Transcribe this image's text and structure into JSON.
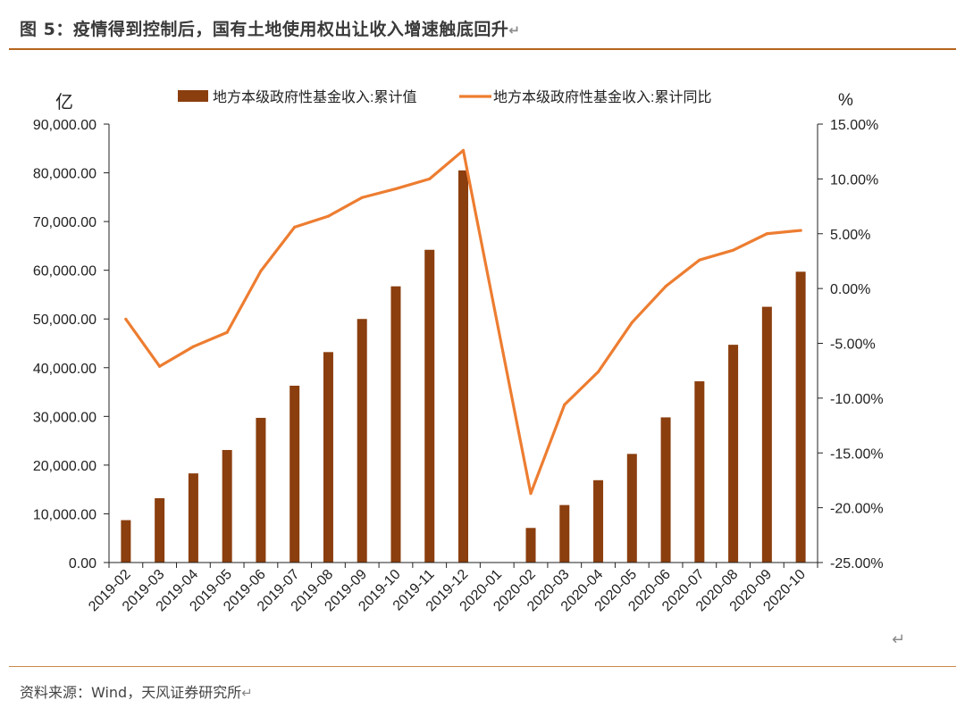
{
  "figure": {
    "title": "图 5：疫情得到控制后，国有土地使用权出让收入增速触底回升",
    "return_glyph": "↵",
    "source": "资料来源：Wind，天风证券研究所"
  },
  "colors": {
    "bar": "#8b3e0e",
    "line": "#ed7d31",
    "axis": "#222222",
    "rule": "#b5651d"
  },
  "chart_data": {
    "type": "bar+line",
    "title": "",
    "categories": [
      "2019-02",
      "2019-03",
      "2019-04",
      "2019-05",
      "2019-06",
      "2019-07",
      "2019-08",
      "2019-09",
      "2019-10",
      "2019-11",
      "2019-12",
      "2020-01",
      "2020-02",
      "2020-03",
      "2020-04",
      "2020-05",
      "2020-06",
      "2020-07",
      "2020-08",
      "2020-09",
      "2020-10"
    ],
    "series": [
      {
        "name": "地方本级政府性基金收入:累计值",
        "type": "bar",
        "axis": "left",
        "values": [
          8700,
          13200,
          18300,
          23100,
          29700,
          36300,
          43200,
          50000,
          56700,
          64200,
          80500,
          null,
          7100,
          11800,
          16900,
          22300,
          29800,
          37200,
          44700,
          52500,
          59700
        ]
      },
      {
        "name": "地方本级政府性基金收入:累计同比",
        "type": "line",
        "axis": "right",
        "values": [
          -2.8,
          -7.1,
          -5.3,
          -4.0,
          1.6,
          5.6,
          6.6,
          8.3,
          9.1,
          10.0,
          12.6,
          null,
          -18.7,
          -10.6,
          -7.6,
          -3.1,
          0.2,
          2.6,
          3.5,
          5.0,
          5.3
        ]
      }
    ],
    "left_axis": {
      "unit_label": "亿",
      "min": 0,
      "max": 90000,
      "step": 10000,
      "tick_labels": [
        "0.00",
        "10,000.00",
        "20,000.00",
        "30,000.00",
        "40,000.00",
        "50,000.00",
        "60,000.00",
        "70,000.00",
        "80,000.00",
        "90,000.00"
      ]
    },
    "right_axis": {
      "unit_label": "%",
      "min": -25,
      "max": 15,
      "step": 5,
      "tick_labels": [
        "-25.00%",
        "-20.00%",
        "-15.00%",
        "-10.00%",
        "-5.00%",
        "0.00%",
        "5.00%",
        "10.00%",
        "15.00%"
      ]
    },
    "legend_position": "top-center",
    "grid": false
  }
}
